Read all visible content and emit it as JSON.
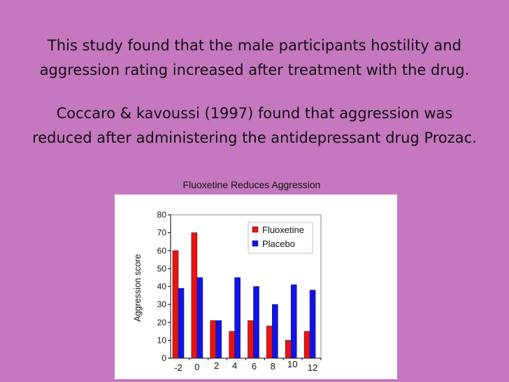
{
  "text": {
    "para1_line1": "This study found that the male participants hostility and",
    "para1_line2": "aggression rating increased after treatment with the drug.",
    "para2_line1": "Coccaro & kavoussi (1997) found that aggression was",
    "para2_line2": "reduced after administering the antidepressant drug Prozac."
  },
  "chart_data": {
    "type": "bar",
    "title": "Fluoxetine Reduces Aggression",
    "xlabel": "",
    "ylabel": "Aggression score",
    "ylim": [
      0,
      80
    ],
    "yticks": [
      "0",
      "10",
      "20",
      "30",
      "40",
      "50",
      "60",
      "70",
      "80"
    ],
    "categories": [
      "-2",
      "0",
      "2",
      "4",
      "6",
      "8",
      "10",
      "12"
    ],
    "series": [
      {
        "name": "Fluoxetine",
        "color": "#ee1111",
        "values": [
          60,
          70,
          21,
          15,
          21,
          18,
          10,
          15
        ]
      },
      {
        "name": "Placebo",
        "color": "#1111ee",
        "values": [
          39,
          45,
          21,
          45,
          40,
          30,
          41,
          38
        ]
      }
    ],
    "legend_position": "top-right",
    "grid": false
  }
}
